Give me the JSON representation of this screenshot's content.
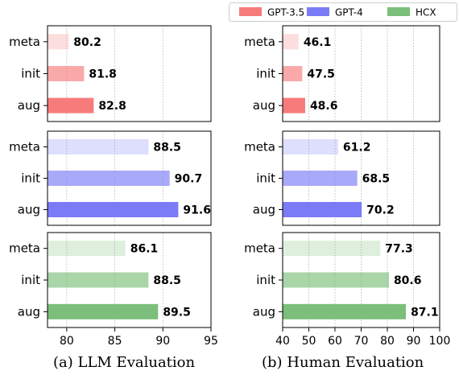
{
  "legend": [
    {
      "name": "GPT-3.5",
      "color": "#f77b7b"
    },
    {
      "name": "GPT-4",
      "color": "#7b7bf7"
    },
    {
      "name": "HCX",
      "color": "#7bbf7b"
    }
  ],
  "captions": {
    "left": "(a) LLM Evaluation",
    "right": "(b) Human Evaluation"
  },
  "chart_data": [
    {
      "type": "bar",
      "orientation": "horizontal",
      "title": "",
      "xlabel": "",
      "ylabel": "",
      "xlim": [
        78,
        95
      ],
      "xticks": [
        80,
        85,
        90,
        95
      ],
      "grid": "x-dotted",
      "categories": [
        "meta",
        "init",
        "aug"
      ],
      "series": [
        {
          "name": "GPT-3.5",
          "values": [
            80.2,
            81.8,
            82.8
          ]
        },
        {
          "name": "GPT-4",
          "values": [
            88.5,
            90.7,
            91.6
          ]
        },
        {
          "name": "HCX",
          "values": [
            86.1,
            88.5,
            89.5
          ]
        }
      ]
    },
    {
      "type": "bar",
      "orientation": "horizontal",
      "title": "",
      "xlabel": "",
      "ylabel": "",
      "xlim": [
        40,
        100
      ],
      "xticks": [
        40,
        50,
        60,
        70,
        80,
        90,
        100
      ],
      "grid": "x-dotted",
      "categories": [
        "meta",
        "init",
        "aug"
      ],
      "series": [
        {
          "name": "GPT-3.5",
          "values": [
            46.1,
            47.5,
            48.6
          ]
        },
        {
          "name": "GPT-4",
          "values": [
            61.2,
            68.5,
            70.2
          ]
        },
        {
          "name": "HCX",
          "values": [
            77.3,
            80.6,
            87.1
          ]
        }
      ]
    }
  ]
}
